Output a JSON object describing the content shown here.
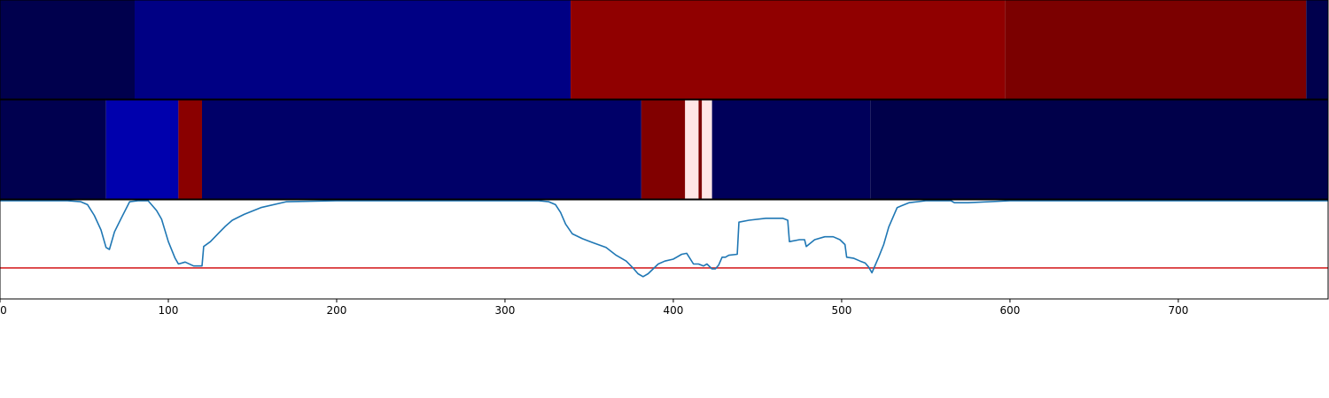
{
  "chart_data": {
    "type": "heatmap",
    "title": "",
    "xlabel": "",
    "ylabel": "",
    "xlim": [
      0,
      789
    ],
    "x_ticks": [
      0,
      100,
      200,
      300,
      400,
      500,
      600,
      700
    ],
    "x_tick_labels": [
      "0",
      "100",
      "200",
      "300",
      "400",
      "500",
      "600",
      "700"
    ],
    "grid": false,
    "legend": "none",
    "band_top": {
      "segments": [
        {
          "start": 0,
          "end": 80,
          "color": "#00004d"
        },
        {
          "start": 80,
          "end": 339,
          "color": "#000084"
        },
        {
          "start": 339,
          "end": 597,
          "color": "#900000"
        },
        {
          "start": 597,
          "end": 776,
          "color": "#7b0000"
        },
        {
          "start": 776,
          "end": 789,
          "color": "#00004d"
        }
      ]
    },
    "band_middle": {
      "segments": [
        {
          "start": 0,
          "end": 63,
          "color": "#00004f"
        },
        {
          "start": 63,
          "end": 106,
          "color": "#0000ad"
        },
        {
          "start": 106,
          "end": 120,
          "color": "#8a0000"
        },
        {
          "start": 120,
          "end": 381,
          "color": "#000068"
        },
        {
          "start": 381,
          "end": 407,
          "color": "#810000"
        },
        {
          "start": 407,
          "end": 415,
          "color": "#ffe6e6"
        },
        {
          "start": 415,
          "end": 417,
          "color": "#7a0000"
        },
        {
          "start": 417,
          "end": 423,
          "color": "#ffe6e6"
        },
        {
          "start": 423,
          "end": 517,
          "color": "#00005a"
        },
        {
          "start": 517,
          "end": 789,
          "color": "#00004a"
        }
      ]
    },
    "line_panel": {
      "ylim": [
        0,
        1
      ],
      "threshold": 0.31,
      "threshold_color": "#d62728",
      "line_color": "#1f77b4",
      "x": [
        0,
        40,
        48,
        52,
        56,
        60,
        63,
        65,
        68,
        72,
        77,
        82,
        88,
        90,
        93,
        96,
        100,
        104,
        106,
        110,
        115,
        120,
        121,
        125,
        130,
        134,
        138,
        145,
        155,
        170,
        200,
        260,
        320,
        326,
        330,
        333,
        336,
        340,
        346,
        352,
        360,
        366,
        372,
        376,
        379,
        382,
        385,
        388,
        391,
        395,
        400,
        405,
        408,
        412,
        415,
        418,
        420,
        423,
        425,
        427,
        429,
        431,
        433,
        438,
        439,
        445,
        455,
        465,
        468,
        469,
        475,
        478,
        479,
        484,
        490,
        495,
        499,
        502,
        503,
        507,
        511,
        514,
        516,
        518,
        519,
        522,
        525,
        528,
        533,
        540,
        550,
        565,
        567,
        575,
        600,
        650,
        789
      ],
      "y": [
        1.0,
        1.0,
        0.99,
        0.96,
        0.85,
        0.7,
        0.52,
        0.5,
        0.68,
        0.82,
        0.99,
        1.0,
        1.0,
        0.96,
        0.9,
        0.81,
        0.58,
        0.41,
        0.35,
        0.37,
        0.33,
        0.33,
        0.53,
        0.58,
        0.67,
        0.74,
        0.8,
        0.86,
        0.93,
        0.99,
        1.0,
        1.0,
        1.0,
        0.99,
        0.96,
        0.88,
        0.76,
        0.66,
        0.61,
        0.57,
        0.52,
        0.44,
        0.38,
        0.31,
        0.25,
        0.22,
        0.25,
        0.3,
        0.35,
        0.38,
        0.4,
        0.45,
        0.46,
        0.35,
        0.35,
        0.33,
        0.35,
        0.3,
        0.3,
        0.34,
        0.42,
        0.42,
        0.44,
        0.45,
        0.78,
        0.8,
        0.82,
        0.82,
        0.8,
        0.58,
        0.6,
        0.6,
        0.53,
        0.6,
        0.63,
        0.63,
        0.6,
        0.55,
        0.42,
        0.41,
        0.38,
        0.36,
        0.32,
        0.26,
        0.3,
        0.42,
        0.55,
        0.73,
        0.93,
        0.98,
        1.0,
        1.0,
        0.98,
        0.98,
        1.0,
        1.0,
        1.0
      ]
    }
  }
}
